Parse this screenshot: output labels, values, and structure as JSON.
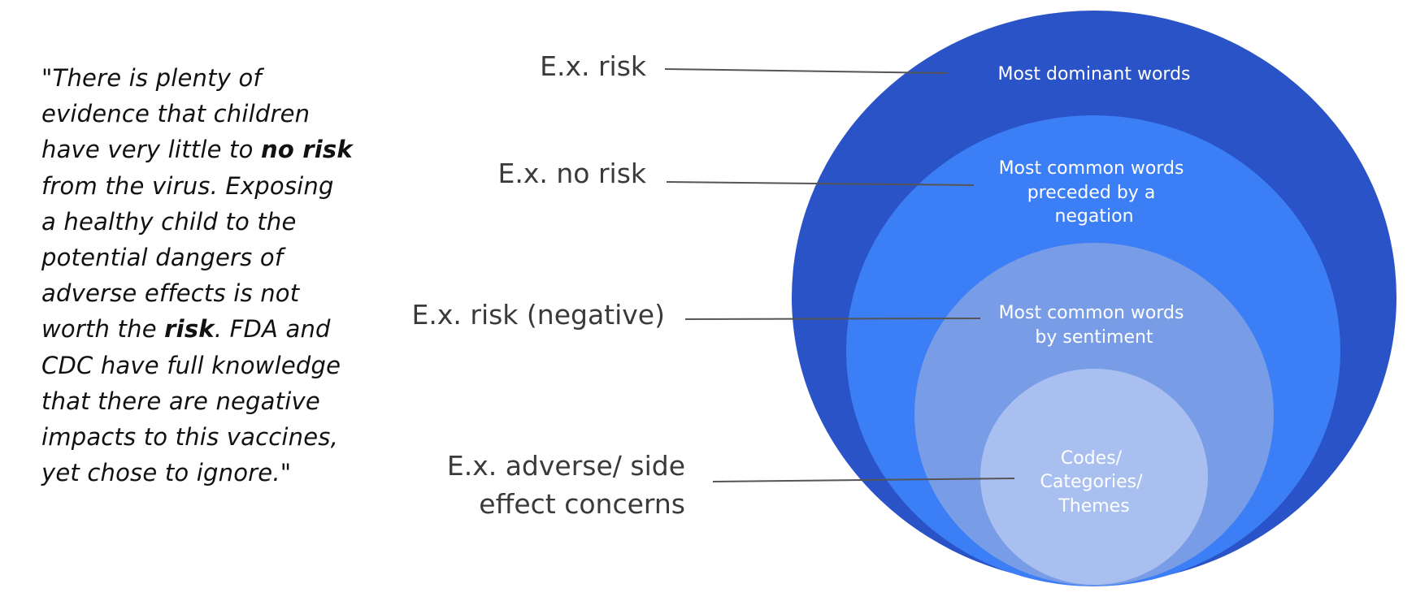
{
  "quote": {
    "lines": [
      {
        "pre": "\"There is plenty of",
        "bold": "",
        "post": ""
      },
      {
        "pre": "evidence that children",
        "bold": "",
        "post": ""
      },
      {
        "pre": "have very little to ",
        "bold": "no risk",
        "post": ""
      },
      {
        "pre": "from the virus. Exposing",
        "bold": "",
        "post": ""
      },
      {
        "pre": "a healthy child to the",
        "bold": "",
        "post": ""
      },
      {
        "pre": "potential dangers of",
        "bold": "",
        "post": ""
      },
      {
        "pre": "adverse effects is not",
        "bold": "",
        "post": ""
      },
      {
        "pre": "worth the ",
        "bold": "risk",
        "post": ". FDA and"
      },
      {
        "pre": "CDC have full knowledge",
        "bold": "",
        "post": ""
      },
      {
        "pre": "that there are negative",
        "bold": "",
        "post": ""
      },
      {
        "pre": "impacts to this vaccines,",
        "bold": "",
        "post": ""
      },
      {
        "pre": "yet chose to ignore.\"",
        "bold": "",
        "post": ""
      }
    ]
  },
  "examples": {
    "ex1": "E.x. risk",
    "ex2": "E.x. no risk",
    "ex3": "E.x. risk (negative)",
    "ex4_line1": "E.x. adverse/ side",
    "ex4_line2": "effect concerns"
  },
  "rings": {
    "level1": {
      "line1": "Most dominant words",
      "color": "#2953c6"
    },
    "level2": {
      "line1": "Most common words",
      "line2": "preceded by a",
      "line3": "negation",
      "color": "#3b7ef5"
    },
    "level3": {
      "line1": "Most common words",
      "line2": "by sentiment",
      "color": "#789de6"
    },
    "level4": {
      "line1": "Codes/",
      "line2": "Categories/",
      "line3": "Themes",
      "color": "#a8bff0"
    }
  },
  "colors": {
    "leader_line": "#555555",
    "quote_text": "#111111",
    "label_text": "#3a3a3a"
  }
}
